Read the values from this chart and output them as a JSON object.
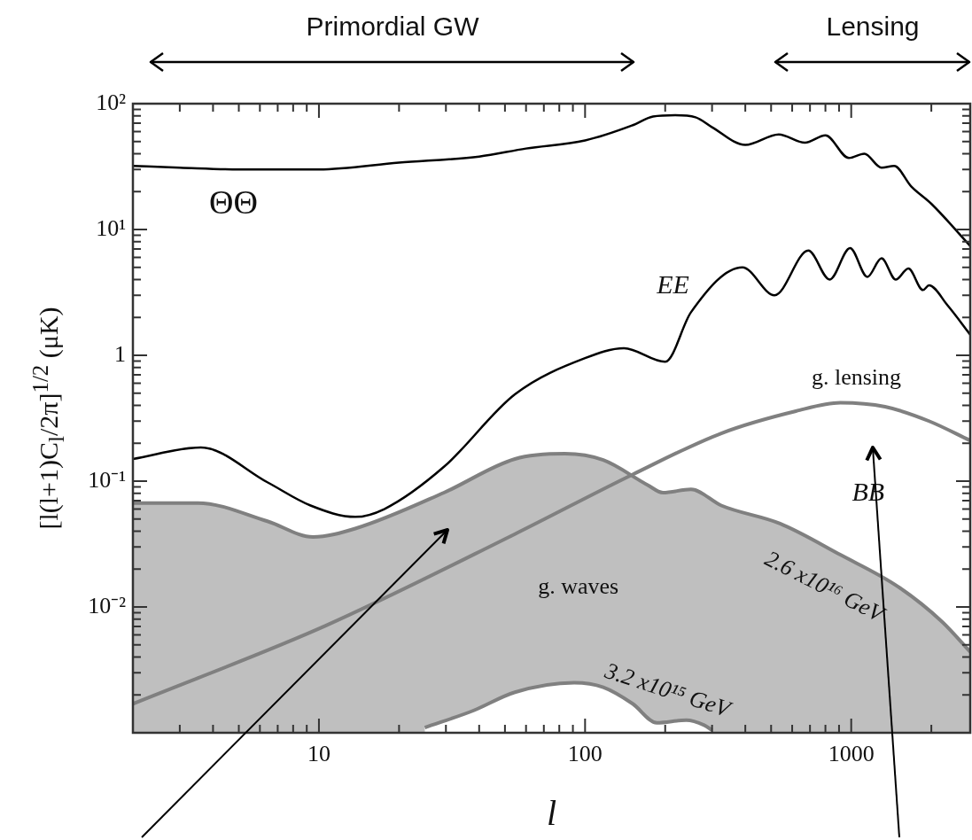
{
  "chart_data": {
    "type": "line",
    "xlabel": "l",
    "ylabel": "[l(l+1)C$_{l}$/2π]$^{1/2}$ (μK)",
    "log": "xy",
    "xlim": [
      2,
      2800
    ],
    "ylim": [
      0.001,
      100
    ],
    "xticks": [
      {
        "value": 3,
        "label": null
      },
      {
        "value": 4,
        "label": null
      },
      {
        "value": 5,
        "label": null
      },
      {
        "value": 6,
        "label": null
      },
      {
        "value": 7,
        "label": null
      },
      {
        "value": 8,
        "label": null
      },
      {
        "value": 9,
        "label": null
      },
      10,
      {
        "value": 20,
        "label": null
      },
      {
        "value": 30,
        "label": null
      },
      {
        "value": 40,
        "label": null
      },
      {
        "value": 50,
        "label": null
      },
      {
        "value": 60,
        "label": null
      },
      {
        "value": 70,
        "label": null
      },
      {
        "value": 80,
        "label": null
      },
      {
        "value": 90,
        "label": null
      },
      100,
      {
        "value": 200,
        "label": null
      },
      {
        "value": 300,
        "label": null
      },
      {
        "value": 400,
        "label": null
      },
      {
        "value": 500,
        "label": null
      },
      {
        "value": 600,
        "label": null
      },
      {
        "value": 700,
        "label": null
      },
      {
        "value": 800,
        "label": null
      },
      {
        "value": 900,
        "label": null
      },
      1000,
      {
        "value": 2000,
        "label": null
      }
    ],
    "yticks": [
      {
        "value": 0.002,
        "label": null
      },
      {
        "value": 0.003,
        "label": null
      },
      {
        "value": 0.004,
        "label": null
      },
      {
        "value": 0.005,
        "label": null
      },
      {
        "value": 0.006,
        "label": null
      },
      {
        "value": 0.007,
        "label": null
      },
      {
        "value": 0.008,
        "label": null
      },
      {
        "value": 0.009,
        "label": null
      },
      {
        "value": 0.01,
        "label": "10⁻²"
      },
      {
        "value": 0.02,
        "label": null
      },
      {
        "value": 0.03,
        "label": null
      },
      {
        "value": 0.04,
        "label": null
      },
      {
        "value": 0.05,
        "label": null
      },
      {
        "value": 0.06,
        "label": null
      },
      {
        "value": 0.07,
        "label": null
      },
      {
        "value": 0.08,
        "label": null
      },
      {
        "value": 0.09,
        "label": null
      },
      {
        "value": 0.1,
        "label": "10⁻¹"
      },
      {
        "value": 0.2,
        "label": null
      },
      {
        "value": 0.3,
        "label": null
      },
      {
        "value": 0.4,
        "label": null
      },
      {
        "value": 0.5,
        "label": null
      },
      {
        "value": 0.6,
        "label": null
      },
      {
        "value": 0.7,
        "label": null
      },
      {
        "value": 0.8,
        "label": null
      },
      {
        "value": 0.9,
        "label": null
      },
      1,
      {
        "value": 2,
        "label": null
      },
      {
        "value": 3,
        "label": null
      },
      {
        "value": 4,
        "label": null
      },
      {
        "value": 5,
        "label": null
      },
      {
        "value": 6,
        "label": null
      },
      {
        "value": 7,
        "label": null
      },
      {
        "value": 8,
        "label": null
      },
      {
        "value": 9,
        "label": null
      },
      {
        "value": 10,
        "label": "10¹"
      },
      {
        "value": 20,
        "label": null
      },
      {
        "value": 30,
        "label": null
      },
      {
        "value": 40,
        "label": null
      },
      {
        "value": 50,
        "label": null
      },
      {
        "value": 60,
        "label": null
      },
      {
        "value": 70,
        "label": null
      },
      {
        "value": 80,
        "label": null
      },
      {
        "value": 90,
        "label": null
      },
      {
        "value": 100,
        "label": "10²"
      }
    ],
    "series": [
      {
        "name": "ΘΘ",
        "type": "line",
        "color": "#000000",
        "x": [
          2,
          3,
          5,
          10,
          20,
          40,
          60,
          100,
          150,
          180,
          218,
          260,
          300,
          400,
          534,
          670,
          800,
          980,
          1120,
          1300,
          1450,
          1680,
          2000,
          2800
        ],
        "values": [
          32,
          31,
          30,
          30,
          34,
          38,
          44,
          51,
          67,
          79,
          81,
          78,
          65,
          47,
          57,
          49,
          56,
          37,
          40,
          31,
          32,
          22,
          16,
          7.4
        ]
      },
      {
        "name": "EE",
        "type": "line",
        "color": "#000000",
        "x": [
          2,
          3.6,
          6.4,
          9.3,
          13.7,
          17.6,
          29.5,
          54.5,
          100,
          140,
          200,
          250,
          390,
          515,
          690,
          830,
          990,
          1150,
          1300,
          1470,
          1640,
          1860,
          1960,
          2300,
          2800
        ],
        "values": [
          0.15,
          0.185,
          0.098,
          0.064,
          0.052,
          0.06,
          0.13,
          0.49,
          0.95,
          1.14,
          0.89,
          2.2,
          5.0,
          3.0,
          6.8,
          4.0,
          7.1,
          4.2,
          5.9,
          4.0,
          4.9,
          3.3,
          3.6,
          2.5,
          1.46
        ]
      },
      {
        "name": "g. lensing",
        "type": "line",
        "color": "#808080",
        "x": [
          2,
          10.6,
          54.5,
          151,
          325,
          620,
          910,
          1340,
          1960,
          2800
        ],
        "values": [
          0.0017,
          0.0071,
          0.038,
          0.113,
          0.24,
          0.36,
          0.42,
          0.39,
          0.3,
          0.21
        ]
      },
      {
        "name": "2.6 x10¹⁶ GeV",
        "type": "area",
        "color": "#808080",
        "x": [
          2,
          3.5,
          6.4,
          9.5,
          13.7,
          29.5,
          54.5,
          84,
          117,
          172,
          196,
          250,
          325,
          540,
          910,
          1500,
          2200,
          2800
        ],
        "values": [
          0.067,
          0.067,
          0.048,
          0.036,
          0.042,
          0.081,
          0.15,
          0.165,
          0.147,
          0.093,
          0.081,
          0.086,
          0.064,
          0.046,
          0.026,
          0.0145,
          0.0076,
          0.0044
        ]
      },
      {
        "name": "3.2 x10¹⁵ GeV",
        "type": "area",
        "color": "#808080",
        "x": [
          25,
          38,
          54.5,
          91,
          117,
          151,
          186,
          240,
          280,
          300
        ],
        "values": [
          0.0011,
          0.0015,
          0.0021,
          0.0025,
          0.0023,
          0.0017,
          0.0012,
          0.00126,
          0.00115,
          0.00105
        ]
      }
    ],
    "annotations": [
      "Primordial GW",
      "Lensing",
      "BB",
      "g. waves"
    ]
  }
}
